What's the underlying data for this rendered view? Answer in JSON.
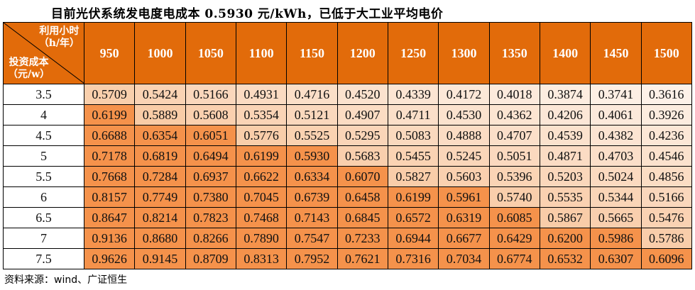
{
  "title": "目前光伏系统发电度电成本 0.5930 元/kWh，已低于大工业平均电价",
  "table": {
    "corner_top_line1": "利用小时",
    "corner_top_line2": "（h/年）",
    "corner_bottom_line1": "投资成本",
    "corner_bottom_line2": "（元/w）",
    "columns": [
      "950",
      "1000",
      "1050",
      "1100",
      "1150",
      "1200",
      "1250",
      "1300",
      "1350",
      "1400",
      "1450",
      "1500"
    ],
    "rows": [
      {
        "label": "3.5",
        "values": [
          "0.5709",
          "0.5424",
          "0.5166",
          "0.4931",
          "0.4716",
          "0.4520",
          "0.4339",
          "0.4172",
          "0.4018",
          "0.3874",
          "0.3741",
          "0.3616"
        ]
      },
      {
        "label": "4",
        "values": [
          "0.6199",
          "0.5889",
          "0.5608",
          "0.5354",
          "0.5121",
          "0.4907",
          "0.4711",
          "0.4530",
          "0.4362",
          "0.4206",
          "0.4061",
          "0.3926"
        ]
      },
      {
        "label": "4.5",
        "values": [
          "0.6688",
          "0.6354",
          "0.6051",
          "0.5776",
          "0.5525",
          "0.5295",
          "0.5083",
          "0.4888",
          "0.4707",
          "0.4539",
          "0.4382",
          "0.4236"
        ]
      },
      {
        "label": "5",
        "values": [
          "0.7178",
          "0.6819",
          "0.6494",
          "0.6199",
          "0.5930",
          "0.5683",
          "0.5455",
          "0.5245",
          "0.5051",
          "0.4871",
          "0.4703",
          "0.4546"
        ]
      },
      {
        "label": "5.5",
        "values": [
          "0.7668",
          "0.7284",
          "0.6937",
          "0.6622",
          "0.6334",
          "0.6070",
          "0.5827",
          "0.5603",
          "0.5396",
          "0.5203",
          "0.5024",
          "0.4856"
        ]
      },
      {
        "label": "6",
        "values": [
          "0.8157",
          "0.7749",
          "0.7380",
          "0.7045",
          "0.6739",
          "0.6458",
          "0.6199",
          "0.5961",
          "0.5740",
          "0.5535",
          "0.5344",
          "0.5166"
        ]
      },
      {
        "label": "6.5",
        "values": [
          "0.8647",
          "0.8214",
          "0.7823",
          "0.7468",
          "0.7143",
          "0.6845",
          "0.6572",
          "0.6319",
          "0.6085",
          "0.5867",
          "0.5665",
          "0.5476"
        ]
      },
      {
        "label": "7",
        "values": [
          "0.9136",
          "0.8680",
          "0.8266",
          "0.7890",
          "0.7547",
          "0.7233",
          "0.6944",
          "0.6677",
          "0.6429",
          "0.6200",
          "0.5986",
          "0.5786"
        ]
      },
      {
        "label": "7.5",
        "values": [
          "0.9626",
          "0.9145",
          "0.8709",
          "0.8313",
          "0.7952",
          "0.7621",
          "0.7316",
          "0.7034",
          "0.6774",
          "0.6532",
          "0.6307",
          "0.6096"
        ]
      }
    ]
  },
  "colors": {
    "header": "#E26B0A",
    "above_threshold": "#F5924B",
    "light_low": "#FDF1E8",
    "light_high": "#F9CBA6"
  },
  "threshold": 0.593,
  "footer": "资料来源：wind、广证恒生"
}
